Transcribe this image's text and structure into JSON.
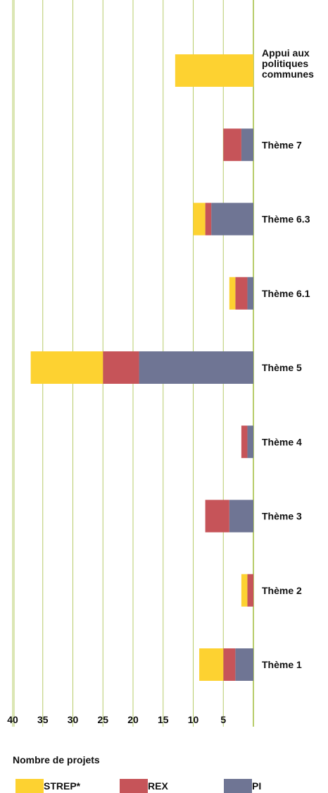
{
  "chart_data": {
    "type": "bar",
    "orientation": "horizontal",
    "stacked": true,
    "x_reversed": true,
    "categories": [
      "Appui aux politiques communes",
      "Thème 7",
      "Thème 6.3",
      "Thème 6.1",
      "Thème 5",
      "Thème 4",
      "Thème 3",
      "Thème 2",
      "Thème 1"
    ],
    "category_label_lines": [
      [
        "Appui aux",
        "politiques",
        "communes"
      ],
      [
        "Thème 7"
      ],
      [
        "Thème 6.3"
      ],
      [
        "Thème 6.1"
      ],
      [
        "Thème 5"
      ],
      [
        "Thème 4"
      ],
      [
        "Thème 3"
      ],
      [
        "Thème 2"
      ],
      [
        "Thème 1"
      ]
    ],
    "series": [
      {
        "name": "PI",
        "color": "#6f7594",
        "values": [
          0,
          2,
          7,
          1,
          19,
          1,
          4,
          0,
          3
        ]
      },
      {
        "name": "REX",
        "color": "#c65459",
        "values": [
          0,
          3,
          1,
          2,
          6,
          1,
          4,
          1,
          2
        ]
      },
      {
        "name": "STREP*",
        "color": "#fdd231",
        "values": [
          13,
          0,
          2,
          1,
          12,
          0,
          0,
          1,
          4
        ]
      }
    ],
    "xlim": [
      0,
      41
    ],
    "xticks": [
      40,
      35,
      30,
      25,
      20,
      15,
      10,
      5
    ],
    "xlabel": "Nombre de projets",
    "grid": true,
    "grid_color": "#b7cc6a",
    "legend": {
      "position": "bottom",
      "order": [
        "STREP*",
        "REX",
        "PI"
      ]
    }
  }
}
